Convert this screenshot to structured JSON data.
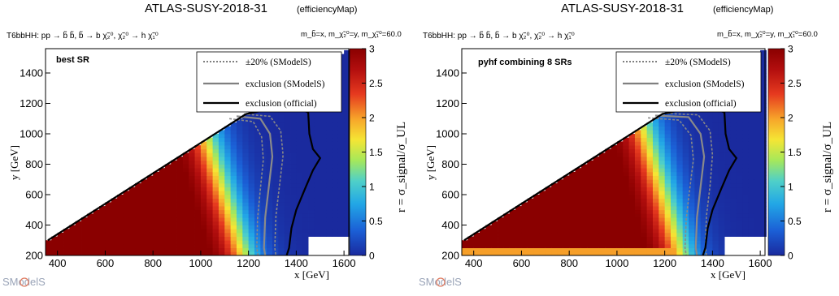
{
  "panels": [
    {
      "title_main": "ATLAS-SUSY-2018-31",
      "title_sub": "(efficiencyMap)",
      "process": "T6bbHH: pp → b̃ b̃, b̃ → b χ̃₂⁰, χ̃₂⁰ → h χ̃₁⁰",
      "mass_note": "m_b̃=x, m_χ̃₂⁰=y, m_χ̃₁⁰=60.0",
      "inner_label": "best SR",
      "legend": [
        {
          "label": "±20% (SModelS)",
          "style": "dotted",
          "color": "#555555"
        },
        {
          "label": "exclusion (SModelS)",
          "style": "solid-gray",
          "color": "#808080"
        },
        {
          "label": "exclusion (official)",
          "style": "solid-black",
          "color": "#000000"
        }
      ],
      "xlabel": "x [GeV]",
      "ylabel": "y [GeV]",
      "zlabel": "r = σ_signal/σ_UL",
      "logo": "SModelS"
    },
    {
      "title_main": "ATLAS-SUSY-2018-31",
      "title_sub": "(efficiencyMap)",
      "process": "T6bbHH: pp → b̃ b̃, b̃ → b χ̃₂⁰, χ̃₂⁰ → h χ̃₁⁰",
      "mass_note": "m_b̃=x, m_χ̃₂⁰=y, m_χ̃₁⁰=60.0",
      "inner_label": "pyhf combining 8 SRs",
      "legend": [
        {
          "label": "±20% (SModelS)",
          "style": "dotted",
          "color": "#555555"
        },
        {
          "label": "exclusion (SModelS)",
          "style": "solid-gray",
          "color": "#808080"
        },
        {
          "label": "exclusion (official)",
          "style": "solid-black",
          "color": "#000000"
        }
      ],
      "xlabel": "x [GeV]",
      "ylabel": "y [GeV]",
      "zlabel": "r = σ_signal/σ_UL",
      "logo": "SModelS"
    }
  ],
  "chart_data": [
    {
      "type": "heatmap",
      "title": "ATLAS-SUSY-2018-31 (efficiencyMap)",
      "xlabel": "x [GeV]",
      "ylabel": "y [GeV]",
      "zlabel": "r = σ_signal/σ_UL",
      "xlim": [
        350,
        1620
      ],
      "ylim": [
        200,
        1560
      ],
      "zlim": [
        0,
        3
      ],
      "xticks": [
        400,
        600,
        800,
        1000,
        1200,
        1400,
        1600
      ],
      "yticks": [
        200,
        400,
        600,
        800,
        1000,
        1200,
        1400
      ],
      "zticks": [
        0,
        0.5,
        1,
        1.5,
        2,
        2.5,
        3
      ],
      "region": "y < x - 60",
      "r_model": {
        "x_half": 1180,
        "width": 50,
        "dy_shift": 0.17,
        "bottom_low": false
      },
      "exclusion_smodels": [
        [
          1150,
          1115
        ],
        [
          1250,
          1100
        ],
        [
          1290,
          1000
        ],
        [
          1300,
          850
        ],
        [
          1285,
          650
        ],
        [
          1270,
          450
        ],
        [
          1265,
          250
        ],
        [
          1270,
          200
        ]
      ],
      "exclusion_smodels_plus20": [
        [
          1120,
          1100
        ],
        [
          1220,
          1080
        ],
        [
          1255,
          980
        ],
        [
          1262,
          830
        ],
        [
          1250,
          640
        ],
        [
          1238,
          440
        ],
        [
          1235,
          250
        ],
        [
          1240,
          200
        ]
      ],
      "exclusion_smodels_minus20": [
        [
          1180,
          1130
        ],
        [
          1290,
          1115
        ],
        [
          1335,
          1020
        ],
        [
          1345,
          860
        ],
        [
          1330,
          660
        ],
        [
          1315,
          460
        ],
        [
          1310,
          250
        ],
        [
          1315,
          200
        ]
      ],
      "exclusion_official": [
        [
          360,
          300
        ],
        [
          1190,
          1130
        ],
        [
          1380,
          1190
        ],
        [
          1450,
          1140
        ],
        [
          1455,
          1000
        ],
        [
          1470,
          900
        ],
        [
          1500,
          840
        ],
        [
          1470,
          760
        ],
        [
          1440,
          650
        ],
        [
          1400,
          500
        ],
        [
          1380,
          380
        ],
        [
          1370,
          250
        ],
        [
          1360,
          200
        ]
      ]
    },
    {
      "type": "heatmap",
      "title": "ATLAS-SUSY-2018-31 (efficiencyMap)",
      "xlabel": "x [GeV]",
      "ylabel": "y [GeV]",
      "zlabel": "r = σ_signal/σ_UL",
      "xlim": [
        350,
        1620
      ],
      "ylim": [
        200,
        1560
      ],
      "zlim": [
        0,
        3
      ],
      "xticks": [
        400,
        600,
        800,
        1000,
        1200,
        1400,
        1600
      ],
      "yticks": [
        200,
        400,
        600,
        800,
        1000,
        1200,
        1400
      ],
      "zticks": [
        0,
        0.5,
        1,
        1.5,
        2,
        2.5,
        3
      ],
      "region": "y < x - 60",
      "r_model": {
        "x_half": 1270,
        "width": 50,
        "dy_shift": 0.15,
        "bottom_low": true
      },
      "exclusion_smodels": [
        [
          1160,
          1120
        ],
        [
          1300,
          1110
        ],
        [
          1350,
          1000
        ],
        [
          1365,
          850
        ],
        [
          1350,
          650
        ],
        [
          1335,
          450
        ],
        [
          1330,
          250
        ],
        [
          1335,
          200
        ]
      ],
      "exclusion_smodels_plus20": [
        [
          1130,
          1105
        ],
        [
          1260,
          1090
        ],
        [
          1310,
          990
        ],
        [
          1320,
          830
        ],
        [
          1305,
          640
        ],
        [
          1290,
          440
        ],
        [
          1285,
          250
        ],
        [
          1290,
          200
        ]
      ],
      "exclusion_smodels_minus20": [
        [
          1190,
          1135
        ],
        [
          1340,
          1125
        ],
        [
          1390,
          1020
        ],
        [
          1400,
          860
        ],
        [
          1390,
          660
        ],
        [
          1375,
          460
        ],
        [
          1370,
          250
        ],
        [
          1375,
          200
        ]
      ],
      "exclusion_official": [
        [
          360,
          300
        ],
        [
          1190,
          1130
        ],
        [
          1380,
          1190
        ],
        [
          1450,
          1140
        ],
        [
          1455,
          1000
        ],
        [
          1470,
          900
        ],
        [
          1500,
          840
        ],
        [
          1470,
          760
        ],
        [
          1440,
          650
        ],
        [
          1400,
          500
        ],
        [
          1380,
          380
        ],
        [
          1370,
          250
        ],
        [
          1360,
          200
        ]
      ]
    }
  ]
}
